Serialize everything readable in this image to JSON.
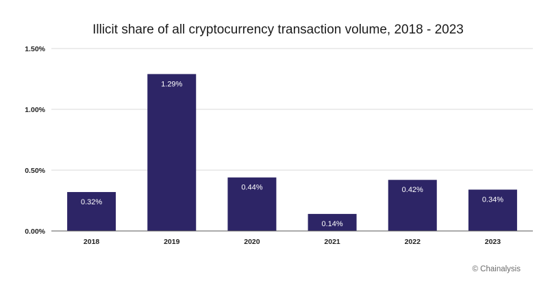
{
  "chart_data": {
    "type": "bar",
    "title": "Illicit share of all cryptocurrency transaction volume, 2018 - 2023",
    "categories": [
      "2018",
      "2019",
      "2020",
      "2021",
      "2022",
      "2023"
    ],
    "values": [
      0.32,
      1.29,
      0.44,
      0.14,
      0.42,
      0.34
    ],
    "value_labels": [
      "0.32%",
      "1.29%",
      "0.44%",
      "0.14%",
      "0.42%",
      "0.34%"
    ],
    "xlabel": "",
    "ylabel": "",
    "ylim": [
      0,
      1.5
    ],
    "yticks": [
      0,
      0.5,
      1.0,
      1.5
    ],
    "ytick_labels": [
      "0.00%",
      "0.50%",
      "1.00%",
      "1.50%"
    ],
    "grid": true,
    "bar_color": "#2d2566",
    "credit": "© Chainalysis"
  }
}
